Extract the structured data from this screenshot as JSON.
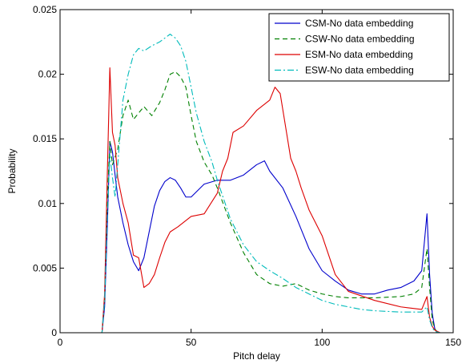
{
  "chart_data": {
    "type": "line",
    "title": "",
    "xlabel": "Pitch delay",
    "ylabel": "Probability",
    "xlim": [
      0,
      150
    ],
    "ylim": [
      0,
      0.025
    ],
    "xticks": [
      0,
      50,
      100,
      150
    ],
    "xtick_labels": [
      "0",
      "50",
      "100",
      "150"
    ],
    "yticks": [
      0,
      0.005,
      0.01,
      0.015,
      0.02,
      0.025
    ],
    "ytick_labels": [
      "0",
      "0.005",
      "0.01",
      "0.015",
      "0.02",
      "0.025"
    ],
    "grid": false,
    "legend_position": "top-right",
    "series": [
      {
        "name": "CSM-No data embedding",
        "color": "#0000cc",
        "style": "solid",
        "x": [
          0,
          16,
          17,
          18,
          19,
          20,
          21,
          22,
          24,
          26,
          28,
          30,
          32,
          34,
          36,
          38,
          40,
          42,
          44,
          46,
          48,
          50,
          55,
          60,
          65,
          70,
          75,
          78,
          80,
          85,
          90,
          95,
          100,
          105,
          110,
          115,
          120,
          125,
          130,
          135,
          138,
          140,
          141,
          142,
          143,
          144,
          145,
          150
        ],
        "y": [
          0,
          0,
          0.002,
          0.008,
          0.0148,
          0.014,
          0.0122,
          0.0105,
          0.0085,
          0.0068,
          0.0055,
          0.0048,
          0.0058,
          0.0078,
          0.0098,
          0.011,
          0.0117,
          0.012,
          0.0118,
          0.0112,
          0.0105,
          0.0105,
          0.0115,
          0.0118,
          0.0118,
          0.0122,
          0.013,
          0.0133,
          0.0125,
          0.0112,
          0.009,
          0.0065,
          0.0048,
          0.004,
          0.0033,
          0.003,
          0.003,
          0.0033,
          0.0035,
          0.004,
          0.0048,
          0.0092,
          0.0045,
          0.0015,
          0.0003,
          0,
          0,
          0
        ]
      },
      {
        "name": "CSW-No data embedding",
        "color": "#008000",
        "style": "dashed",
        "x": [
          0,
          16,
          17,
          18,
          19,
          20,
          22,
          24,
          26,
          28,
          30,
          32,
          35,
          38,
          40,
          42,
          44,
          46,
          48,
          50,
          52,
          55,
          58,
          60,
          65,
          70,
          75,
          80,
          85,
          90,
          95,
          100,
          105,
          110,
          120,
          130,
          135,
          138,
          140,
          141,
          142,
          143,
          144,
          145,
          150
        ],
        "y": [
          0,
          0,
          0.0025,
          0.01,
          0.0148,
          0.013,
          0.0142,
          0.0168,
          0.018,
          0.0165,
          0.017,
          0.0175,
          0.0168,
          0.0178,
          0.0188,
          0.02,
          0.0202,
          0.0198,
          0.019,
          0.0168,
          0.0148,
          0.0132,
          0.0122,
          0.0112,
          0.0085,
          0.0062,
          0.0045,
          0.0038,
          0.0036,
          0.0038,
          0.0033,
          0.003,
          0.0028,
          0.0027,
          0.0027,
          0.0028,
          0.003,
          0.0035,
          0.0065,
          0.0035,
          0.001,
          0.0003,
          0,
          0,
          0
        ]
      },
      {
        "name": "ESM-No data embedding",
        "color": "#dd0000",
        "style": "solid",
        "x": [
          0,
          16,
          17,
          18,
          19,
          20,
          21,
          22,
          24,
          26,
          28,
          30,
          32,
          34,
          36,
          38,
          40,
          42,
          45,
          50,
          55,
          60,
          62,
          64,
          66,
          70,
          75,
          80,
          82,
          84,
          86,
          88,
          90,
          92,
          95,
          100,
          105,
          110,
          120,
          130,
          138,
          140,
          141,
          142,
          143,
          145,
          150
        ],
        "y": [
          0,
          0,
          0.003,
          0.012,
          0.0205,
          0.0155,
          0.0145,
          0.012,
          0.01,
          0.0085,
          0.006,
          0.0058,
          0.0035,
          0.0038,
          0.0045,
          0.0058,
          0.007,
          0.0078,
          0.0082,
          0.009,
          0.0092,
          0.0108,
          0.0125,
          0.0135,
          0.0155,
          0.016,
          0.0172,
          0.018,
          0.019,
          0.0185,
          0.016,
          0.0135,
          0.0125,
          0.0112,
          0.0095,
          0.0075,
          0.0045,
          0.0032,
          0.0025,
          0.002,
          0.0018,
          0.0028,
          0.0012,
          0.0005,
          0.0002,
          0,
          0
        ]
      },
      {
        "name": "ESW-No data embedding",
        "color": "#00bbbb",
        "style": "dashdot",
        "x": [
          0,
          16,
          17,
          18,
          19,
          20,
          21,
          22,
          24,
          26,
          28,
          30,
          32,
          35,
          38,
          40,
          42,
          44,
          46,
          48,
          50,
          52,
          55,
          58,
          60,
          65,
          70,
          75,
          80,
          85,
          90,
          95,
          100,
          105,
          110,
          115,
          120,
          130,
          138,
          140,
          141,
          142,
          143,
          145,
          150
        ],
        "y": [
          0,
          0,
          0.0025,
          0.009,
          0.0138,
          0.012,
          0.0105,
          0.013,
          0.018,
          0.02,
          0.0215,
          0.022,
          0.0218,
          0.0222,
          0.0225,
          0.0228,
          0.0231,
          0.0228,
          0.0222,
          0.021,
          0.019,
          0.017,
          0.0148,
          0.0132,
          0.0118,
          0.0088,
          0.0068,
          0.0055,
          0.0048,
          0.0042,
          0.0035,
          0.003,
          0.0025,
          0.0022,
          0.002,
          0.0018,
          0.0017,
          0.0016,
          0.0016,
          0.002,
          0.001,
          0.0004,
          0.0001,
          0,
          0
        ]
      }
    ]
  }
}
